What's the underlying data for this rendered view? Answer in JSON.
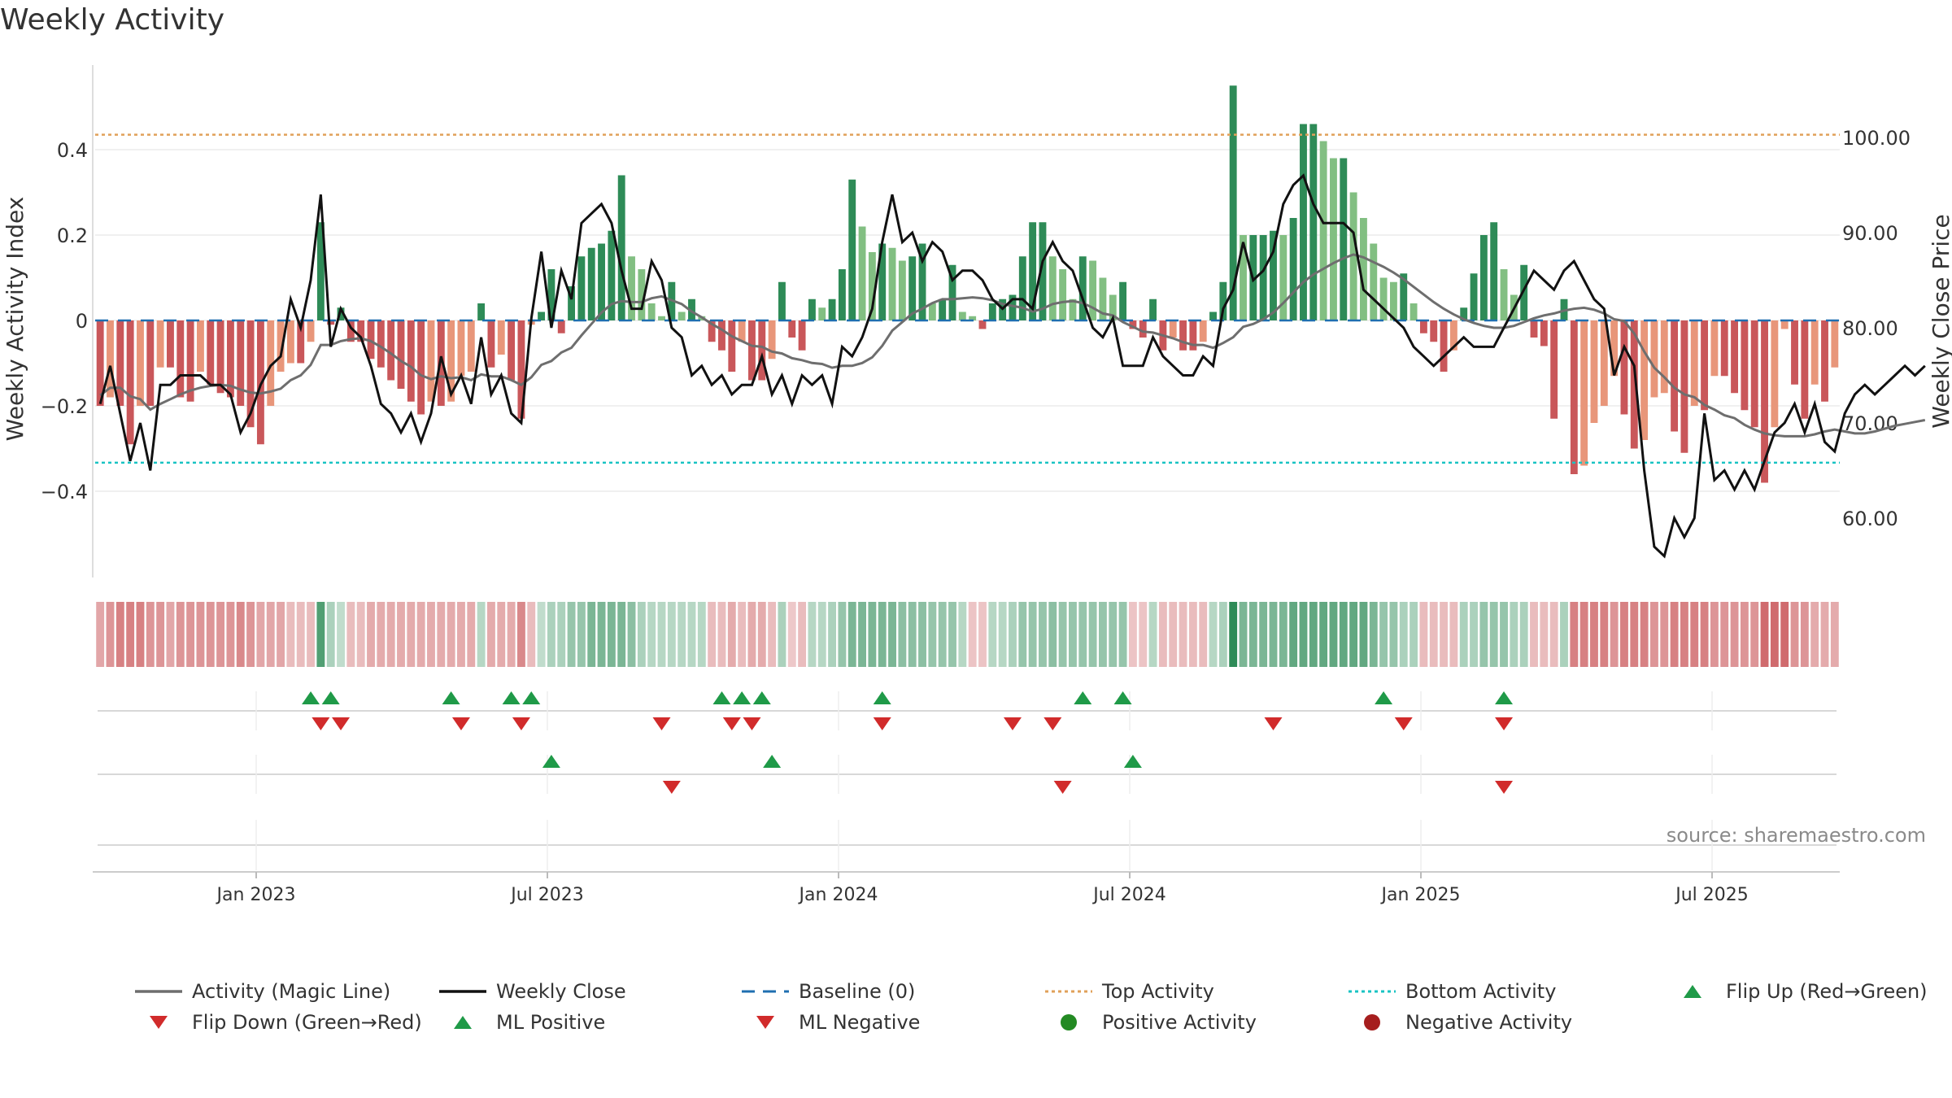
{
  "chart_data": {
    "type": "bar",
    "title": "Weekly Activity",
    "ylabel_left": "Weekly Activity Index",
    "ylabel_right": "Weekly Close Price",
    "left_ticks": [
      {
        "value": 0.4,
        "label": "0.4"
      },
      {
        "value": 0.2,
        "label": "0.2"
      },
      {
        "value": 0,
        "label": "0"
      },
      {
        "value": -0.2,
        "label": "−0.2"
      },
      {
        "value": -0.4,
        "label": "−0.4"
      }
    ],
    "right_ticks": [
      {
        "value": 100,
        "label": "100.00"
      },
      {
        "value": 90,
        "label": "90.00"
      },
      {
        "value": 80,
        "label": "80.00"
      },
      {
        "value": 70,
        "label": "70.00"
      },
      {
        "value": 60,
        "label": "60.00"
      }
    ],
    "ylim_left": [
      -0.6,
      0.6
    ],
    "ylim_right": [
      53,
      107
    ],
    "x_ticks": [
      "Jan 2023",
      "Jul 2023",
      "Jan 2024",
      "Jul 2024",
      "Jan 2025",
      "Jul 2025"
    ],
    "top_activity": 0.435,
    "bottom_activity": -0.333,
    "activity": [
      -0.2,
      -0.18,
      -0.2,
      -0.29,
      -0.2,
      -0.2,
      -0.11,
      -0.11,
      -0.18,
      -0.19,
      -0.12,
      -0.15,
      -0.17,
      -0.18,
      -0.2,
      -0.25,
      -0.29,
      -0.2,
      -0.12,
      -0.1,
      -0.1,
      -0.05,
      0.23,
      -0.01,
      0.03,
      -0.05,
      -0.05,
      -0.09,
      -0.11,
      -0.14,
      -0.16,
      -0.19,
      -0.22,
      -0.19,
      -0.2,
      -0.19,
      -0.13,
      -0.12,
      0.04,
      -0.11,
      -0.08,
      -0.14,
      -0.23,
      -0.01,
      0.02,
      0.12,
      -0.03,
      0.08,
      0.15,
      0.17,
      0.18,
      0.21,
      0.34,
      0.15,
      0.12,
      0.04,
      0.01,
      0.09,
      0.02,
      0.05,
      0.01,
      -0.05,
      -0.07,
      -0.12,
      -0.05,
      -0.14,
      -0.14,
      -0.09,
      0.09,
      -0.04,
      -0.07,
      0.05,
      0.03,
      0.05,
      0.12,
      0.33,
      0.22,
      0.16,
      0.18,
      0.17,
      0.14,
      0.15,
      0.18,
      0.04,
      0.05,
      0.13,
      0.02,
      0.01,
      -0.02,
      0.04,
      0.05,
      0.06,
      0.15,
      0.23,
      0.23,
      0.15,
      0.12,
      0.05,
      0.15,
      0.14,
      0.1,
      0.06,
      0.09,
      -0.02,
      -0.04,
      0.05,
      -0.07,
      -0.04,
      -0.07,
      -0.07,
      -0.05,
      0.02,
      0.09,
      0.55,
      0.2,
      0.2,
      0.2,
      0.21,
      0.2,
      0.24,
      0.46,
      0.46,
      0.42,
      0.38,
      0.38,
      0.3,
      0.24,
      0.18,
      0.1,
      0.09,
      0.11,
      0.04,
      -0.03,
      -0.05,
      -0.12,
      -0.07,
      0.03,
      0.11,
      0.2,
      0.23,
      0.12,
      0.06,
      0.13,
      -0.04,
      -0.06,
      -0.23,
      0.05,
      -0.36,
      -0.34,
      -0.24,
      -0.2,
      -0.13,
      -0.22,
      -0.3,
      -0.28,
      -0.18,
      -0.17,
      -0.26,
      -0.31,
      -0.2,
      -0.21,
      -0.13,
      -0.13,
      -0.17,
      -0.21,
      -0.25,
      -0.38,
      -0.25,
      -0.02,
      -0.15,
      -0.23,
      -0.15,
      -0.19,
      -0.11
    ],
    "weekly_close": [
      72,
      76,
      71,
      66,
      70,
      65,
      74,
      74,
      75,
      75,
      75,
      74,
      74,
      73,
      69,
      71,
      74,
      76,
      77,
      83,
      80,
      85,
      94,
      78,
      82,
      80,
      79,
      76,
      72,
      71,
      69,
      71,
      68,
      71,
      77,
      73,
      75,
      72,
      79,
      73,
      75,
      71,
      70,
      81,
      88,
      80,
      86,
      83,
      91,
      92,
      93,
      91,
      86,
      82,
      82,
      87,
      85,
      80,
      79,
      75,
      76,
      74,
      75,
      73,
      74,
      74,
      77,
      73,
      75,
      72,
      75,
      74,
      75,
      72,
      78,
      77,
      79,
      82,
      89,
      94,
      89,
      90,
      87,
      89,
      88,
      85,
      86,
      86,
      85,
      83,
      82,
      83,
      83,
      82,
      87,
      89,
      87,
      86,
      83,
      80,
      79,
      81,
      76,
      76,
      76,
      79,
      77,
      76,
      75,
      75,
      77,
      76,
      82,
      84,
      89,
      85,
      86,
      88,
      93,
      95,
      96,
      93,
      91,
      91,
      91,
      90,
      84,
      83,
      82,
      81,
      80,
      78,
      77,
      76,
      77,
      78,
      79,
      78,
      78,
      78,
      80,
      82,
      84,
      86,
      85,
      84,
      86,
      87,
      85,
      83,
      82,
      75,
      78,
      76,
      65,
      57,
      56,
      60,
      58,
      60,
      71,
      64,
      65,
      63,
      65,
      63,
      66,
      69,
      70,
      72,
      69,
      72,
      68,
      67,
      71,
      73,
      74,
      73,
      74,
      75,
      76,
      75,
      76
    ],
    "magic_line": [
      72.9,
      73.7,
      73.7,
      72.8,
      72.5,
      71.4,
      72.0,
      72.5,
      73.0,
      73.4,
      73.7,
      73.9,
      74.0,
      73.9,
      73.5,
      73.2,
      73.1,
      73.3,
      73.6,
      74.5,
      75.0,
      76.1,
      78.2,
      78.2,
      78.6,
      78.8,
      78.9,
      78.6,
      78.0,
      77.3,
      76.5,
      75.9,
      75.0,
      74.6,
      74.9,
      74.7,
      74.8,
      74.5,
      75.1,
      74.9,
      74.9,
      74.5,
      74.0,
      74.8,
      76.1,
      76.5,
      77.4,
      77.9,
      79.2,
      80.4,
      81.6,
      82.5,
      82.8,
      82.7,
      82.7,
      83.1,
      83.3,
      82.9,
      82.5,
      81.7,
      81.1,
      80.4,
      79.8,
      79.1,
      78.6,
      78.1,
      78.0,
      77.5,
      77.3,
      76.8,
      76.6,
      76.3,
      76.2,
      75.8,
      76.0,
      76.0,
      76.3,
      76.9,
      78.1,
      79.7,
      80.6,
      81.5,
      82.0,
      82.6,
      83.0,
      83.0,
      83.1,
      83.2,
      83.1,
      82.9,
      82.5,
      82.3,
      82.1,
      81.7,
      82.0,
      82.5,
      82.7,
      82.8,
      82.6,
      82.1,
      81.5,
      81.3,
      80.6,
      80.1,
      79.6,
      79.5,
      79.2,
      78.9,
      78.5,
      78.2,
      78.2,
      77.9,
      78.4,
      79.0,
      80.1,
      80.4,
      80.9,
      81.6,
      82.6,
      83.7,
      84.8,
      85.6,
      86.2,
      86.8,
      87.3,
      87.7,
      87.4,
      86.9,
      86.4,
      85.8,
      85.1,
      84.3,
      83.5,
      82.7,
      82.0,
      81.4,
      80.9,
      80.5,
      80.2,
      80.0,
      80.0,
      80.2,
      80.6,
      81.0,
      81.3,
      81.5,
      81.8,
      82.0,
      82.1,
      81.9,
      81.5,
      80.9,
      80.7,
      79.4,
      77.5,
      75.8,
      74.8,
      73.7,
      73.0,
      72.7,
      71.9,
      71.4,
      70.8,
      70.5,
      69.8,
      69.3,
      68.9,
      68.7,
      68.6,
      68.6,
      68.6,
      68.8,
      69.1,
      69.3,
      69.1,
      68.9,
      68.9,
      69.1,
      69.4,
      69.7,
      69.9,
      70.1,
      70.3
    ],
    "heat_strip": [
      -0.11,
      -0.15,
      -0.2,
      -0.2,
      -0.2,
      -0.15,
      -0.15,
      -0.11,
      -0.15,
      -0.15,
      -0.15,
      -0.15,
      -0.15,
      -0.15,
      -0.18,
      -0.15,
      -0.11,
      -0.11,
      -0.11,
      -0.06,
      -0.06,
      -0.06,
      0.23,
      0.06,
      0.02,
      -0.06,
      -0.06,
      -0.1,
      -0.1,
      -0.1,
      -0.1,
      -0.1,
      -0.1,
      -0.1,
      -0.1,
      -0.1,
      -0.1,
      -0.1,
      0.04,
      -0.1,
      -0.1,
      -0.1,
      -0.18,
      -0.06,
      0.02,
      0.06,
      0.06,
      0.1,
      0.1,
      0.15,
      0.15,
      0.15,
      0.15,
      0.12,
      0.06,
      0.04,
      0.04,
      0.04,
      0.04,
      0.04,
      0.04,
      -0.06,
      -0.06,
      -0.1,
      -0.06,
      -0.1,
      -0.1,
      -0.06,
      0.06,
      -0.03,
      -0.06,
      0.04,
      0.04,
      0.06,
      0.1,
      0.15,
      0.15,
      0.15,
      0.15,
      0.15,
      0.12,
      0.12,
      0.12,
      0.1,
      0.1,
      0.1,
      0.04,
      -0.04,
      -0.04,
      0.04,
      0.04,
      0.06,
      0.1,
      0.1,
      0.1,
      0.12,
      0.1,
      0.1,
      0.1,
      0.1,
      0.1,
      0.1,
      0.1,
      -0.04,
      -0.04,
      0.04,
      -0.06,
      -0.06,
      -0.06,
      -0.06,
      -0.06,
      0.04,
      0.06,
      0.3,
      0.15,
      0.15,
      0.15,
      0.15,
      0.15,
      0.2,
      0.2,
      0.2,
      0.2,
      0.2,
      0.2,
      0.2,
      0.2,
      0.15,
      0.1,
      0.1,
      0.06,
      0.06,
      -0.06,
      -0.06,
      -0.06,
      -0.06,
      0.06,
      0.06,
      0.1,
      0.1,
      0.1,
      0.06,
      0.06,
      -0.06,
      -0.06,
      -0.06,
      0.06,
      -0.2,
      -0.2,
      -0.2,
      -0.2,
      -0.15,
      -0.2,
      -0.2,
      -0.2,
      -0.15,
      -0.15,
      -0.2,
      -0.2,
      -0.2,
      -0.2,
      -0.15,
      -0.15,
      -0.15,
      -0.15,
      -0.15,
      -0.25,
      -0.25,
      -0.25,
      -0.15,
      -0.15,
      -0.1,
      -0.1,
      -0.1
    ],
    "flip_up": [
      21,
      23,
      35,
      41,
      43,
      62,
      64,
      66,
      78,
      98,
      102,
      128,
      140
    ],
    "flip_down": [
      22,
      24,
      36,
      42,
      56,
      63,
      65,
      78,
      91,
      95,
      117,
      130,
      140
    ],
    "ml_positive": [
      45,
      67,
      103
    ],
    "ml_negative": [
      57,
      96,
      140
    ],
    "colors": {
      "strong_up": "#2e8b57",
      "weak_up": "#82bf82",
      "strong_down": "#c9575a",
      "weak_down": "#e8967a",
      "magic_line": "#6e6e6e",
      "weekly_close": "#111111",
      "baseline": "#1f6fb0",
      "top_activity": "#e0a15a",
      "bottom_activity": "#19c3c3",
      "up_marker": "#1f9a48",
      "down_marker": "#d12b2b",
      "positive_dot": "#238a23",
      "negative_dot": "#a61e1e"
    },
    "source": "source: sharemaestro.com",
    "legend": [
      {
        "label": "Activity (Magic Line)",
        "kind": "line",
        "color": "#6e6e6e"
      },
      {
        "label": "Weekly Close",
        "kind": "line",
        "color": "#111111"
      },
      {
        "label": "Baseline (0)",
        "kind": "dash",
        "color": "#1f6fb0"
      },
      {
        "label": "Top Activity",
        "kind": "dot-line",
        "color": "#e0a15a"
      },
      {
        "label": "Bottom Activity",
        "kind": "dot-line",
        "color": "#19c3c3"
      },
      {
        "label": "Flip Up (Red→Green)",
        "kind": "tri-up",
        "color": "#1f9a48"
      },
      {
        "label": "Flip Down (Green→Red)",
        "kind": "tri-down",
        "color": "#d12b2b"
      },
      {
        "label": "ML Positive",
        "kind": "tri-up",
        "color": "#1f9a48"
      },
      {
        "label": "ML Negative",
        "kind": "tri-down",
        "color": "#d12b2b"
      },
      {
        "label": "Positive Activity",
        "kind": "circle",
        "color": "#238a23"
      },
      {
        "label": "Negative Activity",
        "kind": "circle",
        "color": "#a61e1e"
      }
    ]
  }
}
